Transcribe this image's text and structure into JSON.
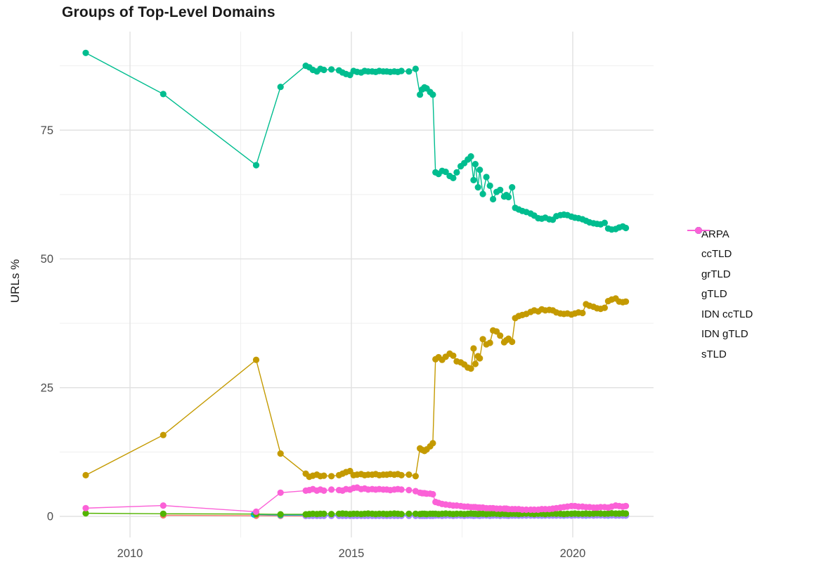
{
  "chart_data": {
    "type": "line",
    "title": "Groups of Top-Level Domains",
    "xlabel": "",
    "ylabel": "URLs %",
    "grid": "on",
    "legend_position": "right",
    "xlim": [
      2008.4,
      2021.8
    ],
    "ylim": [
      -4.5,
      94.5
    ],
    "x_ticks": [
      {
        "v": 2010,
        "label": "2010"
      },
      {
        "v": 2015,
        "label": "2015"
      },
      {
        "v": 2020,
        "label": "2020"
      }
    ],
    "x_minor": [
      2012.5,
      2017.5
    ],
    "y_ticks": [
      {
        "v": 0,
        "label": "0"
      },
      {
        "v": 25,
        "label": "25"
      },
      {
        "v": 50,
        "label": "50"
      },
      {
        "v": 75,
        "label": "75"
      }
    ],
    "y_minor": [
      12.5,
      37.5,
      62.5,
      87.5
    ],
    "x_dense": [
      2013.97,
      2014.05,
      2014.13,
      2014.22,
      2014.3,
      2014.38,
      2014.55,
      2014.72,
      2014.8,
      2014.88,
      2014.97,
      2015.05,
      2015.13,
      2015.22,
      2015.3,
      2015.38,
      2015.47,
      2015.55,
      2015.63,
      2015.72,
      2015.8,
      2015.88,
      2015.97,
      2016.05,
      2016.13,
      2016.3,
      2016.45,
      2016.55,
      2016.6,
      2016.65,
      2016.7,
      2016.78,
      2016.84,
      2016.9,
      2016.97,
      2017.05,
      2017.13,
      2017.22,
      2017.3,
      2017.38,
      2017.47,
      2017.55,
      2017.63,
      2017.7,
      2017.76,
      2017.8,
      2017.86,
      2017.9,
      2017.97,
      2018.05,
      2018.13,
      2018.2,
      2018.28,
      2018.36,
      2018.45,
      2018.5,
      2018.55,
      2018.63,
      2018.7,
      2018.78,
      2018.86,
      2018.95,
      2019.05,
      2019.13,
      2019.22,
      2019.3,
      2019.38,
      2019.47,
      2019.55,
      2019.63,
      2019.72,
      2019.8,
      2019.88,
      2019.97,
      2020.05,
      2020.13,
      2020.22,
      2020.3,
      2020.38,
      2020.47,
      2020.55,
      2020.63,
      2020.72,
      2020.8,
      2020.88,
      2020.97,
      2021.05,
      2021.13,
      2021.2
    ],
    "series": [
      {
        "name": "ARPA",
        "color": "#F8766D",
        "pre": [
          [
            2010.75,
            0.2
          ],
          [
            2012.85,
            0.12
          ],
          [
            2013.4,
            0.1
          ],
          [
            2013.97,
            0.08
          ]
        ],
        "y": []
      },
      {
        "name": "ccTLD",
        "color": "#C49A00",
        "pre": [
          [
            2009.0,
            8.0
          ],
          [
            2010.75,
            15.8
          ],
          [
            2012.85,
            30.4
          ],
          [
            2013.4,
            12.2
          ]
        ],
        "y": [
          8.3,
          7.7,
          7.9,
          8.1,
          7.8,
          7.9,
          7.8,
          8.0,
          8.3,
          8.6,
          8.8,
          8.0,
          8.1,
          8.2,
          8.0,
          8.1,
          8.1,
          8.2,
          8.0,
          8.1,
          8.1,
          8.2,
          8.1,
          8.2,
          8.0,
          8.1,
          7.8,
          13.2,
          12.9,
          12.7,
          13.0,
          13.6,
          14.2,
          30.5,
          30.9,
          30.4,
          31.0,
          31.6,
          31.2,
          30.1,
          29.9,
          29.5,
          28.9,
          28.7,
          32.6,
          29.6,
          31.1,
          30.7,
          34.4,
          33.4,
          33.7,
          36.1,
          35.9,
          35.1,
          33.8,
          34.2,
          34.5,
          33.9,
          38.5,
          38.9,
          39.1,
          39.3,
          39.7,
          40.0,
          39.8,
          40.2,
          40.0,
          40.1,
          40.0,
          39.6,
          39.4,
          39.3,
          39.4,
          39.2,
          39.4,
          39.6,
          39.5,
          41.2,
          40.9,
          40.7,
          40.4,
          40.3,
          40.5,
          41.8,
          42.1,
          42.3,
          41.7,
          41.6,
          41.7
        ]
      },
      {
        "name": "grTLD",
        "color": "#53B400",
        "pre": [
          [
            2009.0,
            0.6
          ],
          [
            2010.75,
            0.5
          ],
          [
            2012.85,
            0.45
          ],
          [
            2013.4,
            0.4
          ]
        ],
        "y": [
          0.4,
          0.45,
          0.5,
          0.45,
          0.5,
          0.5,
          0.45,
          0.5,
          0.55,
          0.5,
          0.45,
          0.5,
          0.5,
          0.45,
          0.5,
          0.55,
          0.5,
          0.45,
          0.5,
          0.5,
          0.45,
          0.5,
          0.55,
          0.5,
          0.45,
          0.5,
          0.5,
          0.45,
          0.5,
          0.5,
          0.45,
          0.5,
          0.5,
          0.5,
          0.45,
          0.5,
          0.55,
          0.5,
          0.45,
          0.5,
          0.5,
          0.45,
          0.5,
          0.55,
          0.5,
          0.5,
          0.45,
          0.5,
          0.5,
          0.45,
          0.5,
          0.55,
          0.5,
          0.45,
          0.5,
          0.5,
          0.45,
          0.5,
          0.5,
          0.45,
          0.5,
          0.55,
          0.5,
          0.45,
          0.5,
          0.5,
          0.45,
          0.5,
          0.55,
          0.5,
          0.5,
          0.45,
          0.5,
          0.5,
          0.55,
          0.5,
          0.5,
          0.55,
          0.5,
          0.55,
          0.6,
          0.55,
          0.5,
          0.55,
          0.6,
          0.55,
          0.55,
          0.6,
          0.55
        ]
      },
      {
        "name": "gTLD",
        "color": "#00BD8F",
        "pre": [
          [
            2009.0,
            90.0
          ],
          [
            2010.75,
            82.0
          ],
          [
            2012.85,
            68.2
          ],
          [
            2013.4,
            83.4
          ]
        ],
        "y": [
          87.5,
          87.2,
          86.7,
          86.4,
          86.9,
          86.7,
          86.8,
          86.6,
          86.2,
          85.9,
          85.7,
          86.5,
          86.3,
          86.2,
          86.5,
          86.4,
          86.4,
          86.3,
          86.5,
          86.4,
          86.4,
          86.3,
          86.4,
          86.3,
          86.5,
          86.4,
          86.9,
          81.9,
          82.9,
          83.3,
          83.1,
          82.4,
          81.9,
          66.8,
          66.5,
          67.1,
          66.9,
          66.1,
          65.7,
          66.8,
          68.0,
          68.6,
          69.3,
          69.9,
          65.3,
          68.4,
          63.9,
          67.3,
          62.6,
          65.9,
          64.2,
          61.6,
          63.0,
          63.4,
          62.1,
          62.4,
          62.0,
          63.9,
          59.9,
          59.6,
          59.3,
          59.1,
          58.8,
          58.4,
          57.9,
          57.8,
          58.0,
          57.7,
          57.6,
          58.3,
          58.5,
          58.6,
          58.5,
          58.2,
          58.0,
          57.9,
          57.7,
          57.4,
          57.1,
          56.9,
          56.8,
          56.7,
          57.0,
          55.9,
          55.7,
          55.8,
          56.1,
          56.3,
          56.0
        ]
      },
      {
        "name": "IDN ccTLD",
        "color": "#00B6EB",
        "pre": [
          [
            2012.8,
            0.35
          ],
          [
            2013.4,
            0.25
          ]
        ],
        "y": [
          0.25,
          0.2,
          0.2,
          0.25,
          0.2,
          0.15,
          0.2,
          0.2,
          0.25,
          0.2,
          0.2,
          0.15,
          0.2,
          0.2,
          0.25,
          0.2,
          0.2,
          0.15,
          0.2,
          0.2,
          0.25,
          0.2,
          0.2,
          0.15,
          0.2,
          0.2,
          0.25,
          0.2,
          0.2,
          0.15,
          0.2,
          0.2,
          0.25,
          0.2,
          0.2,
          0.15,
          0.2,
          0.2,
          0.25,
          0.2,
          0.2,
          0.15,
          0.2,
          0.2,
          0.25,
          0.2,
          0.2,
          0.15,
          0.2,
          0.2,
          0.25,
          0.2,
          0.2,
          0.15,
          0.2,
          0.2,
          0.25,
          0.2,
          0.2,
          0.15,
          0.2,
          0.2,
          0.25,
          0.2,
          0.2,
          0.15,
          0.2,
          0.2,
          0.25,
          0.2,
          0.2,
          0.15,
          0.2,
          0.2,
          0.25,
          0.2,
          0.2,
          0.15,
          0.2,
          0.2,
          0.25,
          0.2,
          0.2,
          0.15,
          0.2,
          0.2,
          0.25,
          0.2,
          0.2
        ]
      },
      {
        "name": "IDN gTLD",
        "color": "#A58AFF",
        "pre": [],
        "y": [
          0.1,
          0.1,
          0.1,
          0.1,
          0.1,
          0.1,
          0.1,
          0.1,
          0.1,
          0.1,
          0.1,
          0.1,
          0.1,
          0.1,
          0.1,
          0.1,
          0.1,
          0.1,
          0.1,
          0.1,
          0.1,
          0.1,
          0.1,
          0.1,
          0.1,
          0.1,
          0.1,
          0.1,
          0.1,
          0.1,
          0.1,
          0.1,
          0.1,
          0.15,
          0.15,
          0.1,
          0.15,
          0.15,
          0.1,
          0.15,
          0.15,
          0.1,
          0.15,
          0.15,
          0.1,
          0.15,
          0.15,
          0.1,
          0.15,
          0.15,
          0.1,
          0.15,
          0.15,
          0.1,
          0.15,
          0.15,
          0.1,
          0.15,
          0.15,
          0.15,
          0.15,
          0.15,
          0.15,
          0.15,
          0.15,
          0.15,
          0.15,
          0.15,
          0.15,
          0.15,
          0.15,
          0.2,
          0.2,
          0.15,
          0.2,
          0.2,
          0.15,
          0.2,
          0.2,
          0.15,
          0.2,
          0.2,
          0.15,
          0.2,
          0.2,
          0.15,
          0.15,
          0.15,
          0.15
        ]
      },
      {
        "name": "sTLD",
        "color": "#FB61D7",
        "pre": [
          [
            2009.0,
            1.6
          ],
          [
            2010.75,
            2.1
          ],
          [
            2012.85,
            0.9
          ],
          [
            2013.4,
            4.6
          ]
        ],
        "y": [
          5.0,
          5.1,
          5.3,
          5.0,
          5.2,
          5.0,
          5.2,
          5.1,
          5.0,
          5.3,
          5.2,
          5.5,
          5.6,
          5.3,
          5.4,
          5.2,
          5.3,
          5.2,
          5.3,
          5.2,
          5.2,
          5.1,
          5.2,
          5.3,
          5.2,
          5.1,
          4.9,
          4.6,
          4.5,
          4.5,
          4.4,
          4.4,
          4.3,
          2.8,
          2.6,
          2.4,
          2.3,
          2.2,
          2.1,
          2.1,
          2.0,
          1.9,
          1.9,
          1.8,
          1.8,
          1.8,
          1.7,
          1.7,
          1.7,
          1.6,
          1.6,
          1.6,
          1.5,
          1.5,
          1.5,
          1.5,
          1.4,
          1.4,
          1.4,
          1.4,
          1.3,
          1.3,
          1.3,
          1.3,
          1.3,
          1.4,
          1.4,
          1.4,
          1.5,
          1.6,
          1.7,
          1.8,
          1.9,
          2.0,
          2.0,
          1.9,
          1.9,
          1.8,
          1.8,
          1.7,
          1.7,
          1.8,
          1.8,
          1.7,
          1.9,
          2.1,
          2.0,
          1.9,
          2.0
        ]
      }
    ],
    "grid_colors": {
      "major": "#E2E2E2",
      "minor": "#EFEFEF"
    },
    "axis_text_color": "#4d4d4d"
  }
}
